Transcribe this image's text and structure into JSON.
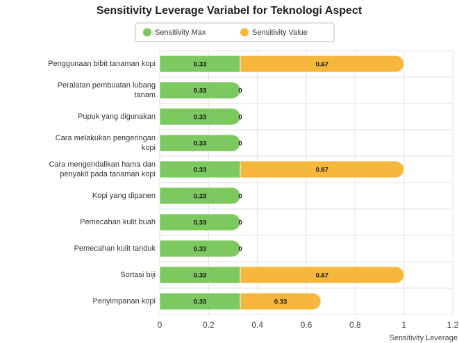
{
  "chart_data": {
    "type": "stacked-bar-horizontal",
    "title": "Sensitivity Leverage Variabel for Teknologi Aspect",
    "x_label": "Sensitivity Leverage",
    "categories": [
      "Penggunaan bibit tanaman kopi",
      "Peralatan pembuatan lubang tanam",
      "Pupuk yang digunakan",
      "Cara melakukan pengeringan kopi",
      "Cara mengendalikan hama dan penyakit pada tanaman kopi",
      "Kopi yang dipanen",
      "Pemecahan kulit buah",
      "Pemecahan kulit tanduk",
      "Sortasi biji",
      "Penyimpanan kopi"
    ],
    "series": [
      {
        "name": "Sensitivity Max",
        "color": "#7cc95f",
        "values": [
          0.33,
          0.33,
          0.33,
          0.33,
          0.33,
          0.33,
          0.33,
          0.33,
          0.33,
          0.33
        ]
      },
      {
        "name": "Sensitivity Value",
        "color": "#f7b73c",
        "values": [
          0.67,
          0,
          0,
          0,
          0.67,
          0,
          0,
          0,
          0.67,
          0.33
        ]
      }
    ],
    "xlim": [
      0,
      1.2
    ],
    "xticks": [
      0,
      0.2,
      0.4,
      0.6,
      0.8,
      1,
      1.2
    ],
    "grid": true,
    "legend": "top"
  }
}
